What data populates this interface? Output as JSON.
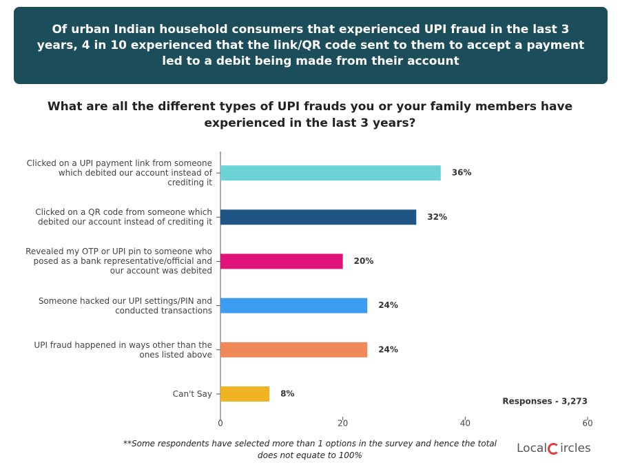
{
  "header": {
    "title": "Of urban Indian household consumers that experienced UPI fraud in the last 3 years, 4 in 10 experienced that the link/QR code sent to them to accept a payment led to a debit being made from their account"
  },
  "chart_data": {
    "type": "bar",
    "orientation": "horizontal",
    "title": "What are all the different types of UPI frauds you or your family members have experienced in the last 3 years?",
    "categories": [
      "Clicked on a UPI payment link from someone which debited our account instead of crediting it",
      "Clicked on a QR code from someone which debited our account instead of crediting it",
      "Revealed my OTP or UPI pin to someone who posed as a bank representative/official and our account was debited",
      "Someone hacked our UPI settings/PIN and conducted transactions",
      "UPI fraud happened in ways other than the ones listed above",
      "Can't Say"
    ],
    "values": [
      36,
      32,
      20,
      24,
      24,
      8
    ],
    "value_labels": [
      "36%",
      "32%",
      "20%",
      "24%",
      "24%",
      "8%"
    ],
    "colors": [
      "#6dd3d6",
      "#1f5584",
      "#e0137a",
      "#3b9cf0",
      "#f0895a",
      "#f0b322"
    ],
    "xlim": [
      0,
      60
    ],
    "xticks": [
      0,
      20,
      40,
      60
    ],
    "annotation": "Responses - 3,273"
  },
  "footer": {
    "note": "**Some respondents have selected more than 1 options in the survey and hence the total does not equate to 100%",
    "logo_left": "Local",
    "logo_right": "ircles"
  }
}
